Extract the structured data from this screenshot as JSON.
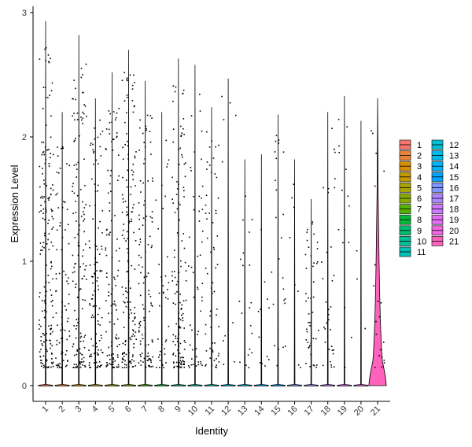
{
  "chart_data": {
    "type": "violin",
    "title": "",
    "xlabel": "Identity",
    "ylabel": "Expression Level",
    "ylim": [
      -0.15,
      3.1
    ],
    "yticks": [
      0,
      1,
      2,
      3
    ],
    "grid": false,
    "legend_position": "right",
    "categories": [
      "1",
      "2",
      "3",
      "4",
      "5",
      "6",
      "7",
      "8",
      "9",
      "10",
      "11",
      "12",
      "13",
      "14",
      "15",
      "16",
      "17",
      "18",
      "19",
      "20",
      "21"
    ],
    "series": [
      {
        "name": "1",
        "color": "#F8766D",
        "max": 2.93,
        "density": 0.0,
        "points": 180
      },
      {
        "name": "2",
        "color": "#EB8335",
        "max": 2.2,
        "density": 0.0,
        "points": 80
      },
      {
        "name": "3",
        "color": "#DA8F00",
        "max": 2.82,
        "density": 0.0,
        "points": 140
      },
      {
        "name": "4",
        "color": "#C49A00",
        "max": 2.31,
        "density": 0.0,
        "points": 110
      },
      {
        "name": "5",
        "color": "#A9A400",
        "max": 2.52,
        "density": 0.0,
        "points": 110
      },
      {
        "name": "6",
        "color": "#86AC00",
        "max": 2.7,
        "density": 0.0,
        "points": 150
      },
      {
        "name": "7",
        "color": "#53B400",
        "max": 2.45,
        "density": 0.0,
        "points": 110
      },
      {
        "name": "8",
        "color": "#00BA38",
        "max": 2.2,
        "density": 0.0,
        "points": 40
      },
      {
        "name": "9",
        "color": "#00BE70",
        "max": 2.63,
        "density": 0.0,
        "points": 130
      },
      {
        "name": "10",
        "color": "#00C097",
        "max": 2.58,
        "density": 0.0,
        "points": 50
      },
      {
        "name": "11",
        "color": "#00C1B8",
        "max": 2.24,
        "density": 0.0,
        "points": 60
      },
      {
        "name": "12",
        "color": "#00BFD4",
        "max": 2.47,
        "density": 0.0,
        "points": 10
      },
      {
        "name": "13",
        "color": "#00BBEB",
        "max": 1.82,
        "density": 0.0,
        "points": 20
      },
      {
        "name": "14",
        "color": "#00B2F9",
        "max": 1.86,
        "density": 0.0,
        "points": 12
      },
      {
        "name": "15",
        "color": "#00A5FF",
        "max": 2.18,
        "density": 0.0,
        "points": 25
      },
      {
        "name": "16",
        "color": "#7E96FF",
        "max": 1.82,
        "density": 0.0,
        "points": 8
      },
      {
        "name": "17",
        "color": "#AD87FF",
        "max": 1.5,
        "density": 0.0,
        "points": 45
      },
      {
        "name": "18",
        "color": "#CD79FF",
        "max": 2.2,
        "density": 0.0,
        "points": 35
      },
      {
        "name": "19",
        "color": "#E46DF6",
        "max": 2.33,
        "density": 0.0,
        "points": 15
      },
      {
        "name": "20",
        "color": "#F365E5",
        "max": 2.13,
        "density": 0.0,
        "points": 3
      },
      {
        "name": "21",
        "color": "#FF62BC",
        "max": 2.31,
        "density": 0.15,
        "points": 20
      }
    ],
    "point_color": "#000000"
  }
}
